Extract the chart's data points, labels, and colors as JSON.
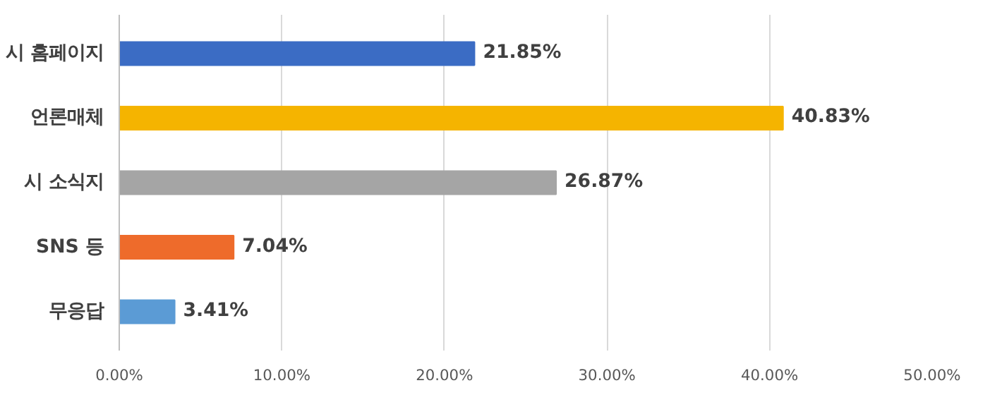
{
  "chart_data": {
    "type": "bar",
    "orientation": "horizontal",
    "categories": [
      "시 홈페이지",
      "언론매체",
      "시 소식지",
      "SNS 등",
      "무응답"
    ],
    "values": [
      21.85,
      40.83,
      26.87,
      7.04,
      3.41
    ],
    "colors": [
      "#3b6cc4",
      "#f5b400",
      "#a5a5a5",
      "#ee6b2b",
      "#5b9bd5"
    ],
    "value_labels": [
      "21.85%",
      "40.83%",
      "26.87%",
      "7.04%",
      "3.41%"
    ],
    "xlim": [
      0,
      50
    ],
    "xticks": [
      {
        "value": 0,
        "label": "0.00%"
      },
      {
        "value": 10,
        "label": "10.00%"
      },
      {
        "value": 20,
        "label": "20.00%"
      },
      {
        "value": 30,
        "label": "30.00%"
      },
      {
        "value": 40,
        "label": "40.00%"
      },
      {
        "value": 50,
        "label": "50.00%"
      }
    ],
    "grid": "x"
  }
}
